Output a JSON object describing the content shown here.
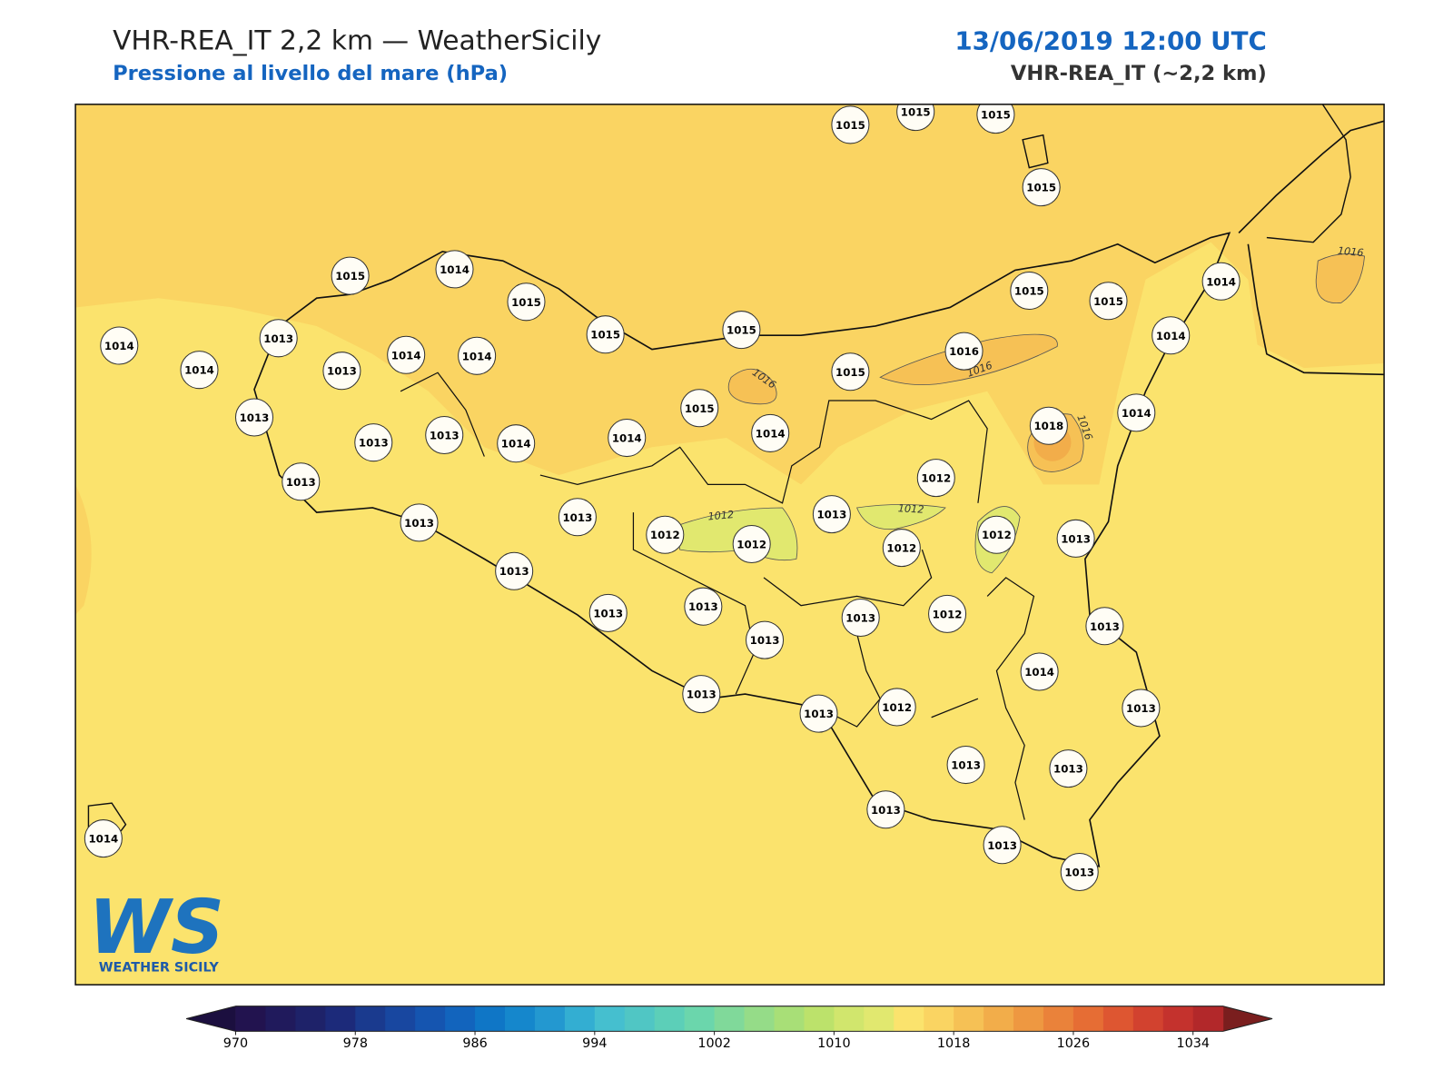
{
  "header": {
    "title": "VHR-REA_IT 2,2 km — WeatherSicily",
    "subtitle": "Pressione al livello del mare (hPa)",
    "date": "13/06/2019 12:00 UTC",
    "model": "VHR-REA_IT (~2,2 km)"
  },
  "map": {
    "stations": [
      1015,
      1015,
      1015,
      1015,
      1015,
      1014,
      1015,
      1015,
      1015,
      1015,
      1015,
      1014,
      1014,
      1013,
      1014,
      1013,
      1014,
      1014,
      1016,
      1015,
      1014,
      1015,
      1013,
      1013,
      1013,
      1014,
      1014,
      1014,
      1018,
      1014,
      1013,
      1012,
      1013,
      1013,
      1012,
      1012,
      1013,
      1012,
      1012,
      1013,
      1013,
      1013,
      1013,
      1013,
      1013,
      1012,
      1013,
      1014,
      1013,
      1013,
      1012,
      1013,
      1013,
      1013,
      1013,
      1013,
      1013,
      1014
    ],
    "contour_labels": [
      "1016",
      "1016",
      "1016",
      "1016",
      "1012",
      "1012"
    ]
  },
  "colorbar": {
    "lim": [
      970,
      1036
    ],
    "ticks": [
      970,
      978,
      986,
      994,
      1002,
      1010,
      1018,
      1026,
      1034
    ],
    "colors": [
      "#22134f",
      "#201a5c",
      "#1e2269",
      "#1c2a7a",
      "#1a3a8e",
      "#1847a0",
      "#1555b0",
      "#1264bd",
      "#0f76c6",
      "#1587cc",
      "#2398d0",
      "#33aed2",
      "#45bfcf",
      "#50c6c4",
      "#5ccfb8",
      "#6bd6ac",
      "#80d99a",
      "#95dc88",
      "#a8df77",
      "#bce26b",
      "#d1e66d",
      "#e1e86f",
      "#fbe36d",
      "#fad462",
      "#f6c155",
      "#f2ad4a",
      "#ee9841",
      "#ea823a",
      "#e66d34",
      "#de5631",
      "#d2422f",
      "#c4322d",
      "#b2282a"
    ],
    "under_color": "#1b0f3f",
    "over_color": "#7a1e1e"
  },
  "logo": {
    "mark": "WS",
    "text": "WEATHER SICILY"
  }
}
